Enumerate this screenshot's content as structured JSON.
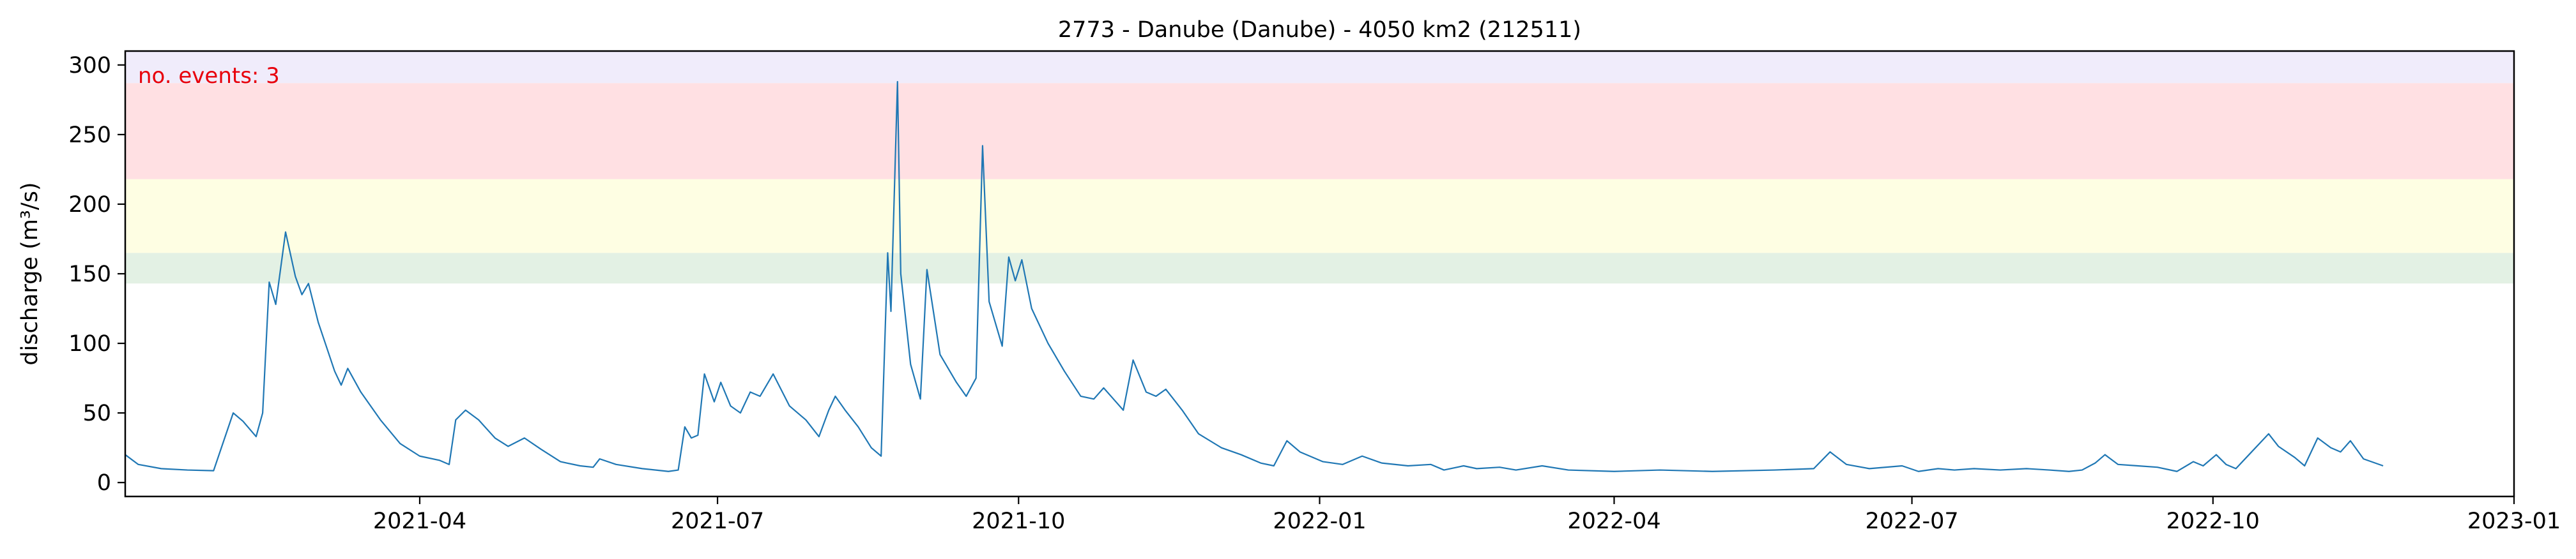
{
  "chart_data": {
    "type": "line",
    "title": "2773 - Danube (Danube) - 4050 km2 (212511)",
    "xlabel": "",
    "ylabel": "discharge (m³/s)",
    "annotation": "no. events: 3",
    "x_range": [
      "2021-01-01",
      "2023-01-01"
    ],
    "ylim": [
      -10,
      310
    ],
    "y_ticks": [
      0,
      50,
      100,
      150,
      200,
      250,
      300
    ],
    "x_ticks": [
      "2021-04",
      "2021-07",
      "2021-10",
      "2022-01",
      "2022-04",
      "2022-07",
      "2022-10",
      "2023-01"
    ],
    "grid": false,
    "threshold_bands": [
      {
        "from": 143,
        "to": 165,
        "color": "#e3f1e4"
      },
      {
        "from": 165,
        "to": 218,
        "color": "#fefee3"
      },
      {
        "from": 218,
        "to": 287,
        "color": "#ffe0e3"
      },
      {
        "from": 287,
        "to": 310,
        "color": "#f0ecfb"
      }
    ],
    "series": [
      {
        "color": "#1f77b4",
        "points": [
          [
            "2021-01-01",
            20
          ],
          [
            "2021-01-05",
            13
          ],
          [
            "2021-01-12",
            10
          ],
          [
            "2021-01-20",
            9
          ],
          [
            "2021-01-28",
            8.5
          ],
          [
            "2021-02-03",
            50
          ],
          [
            "2021-02-06",
            44
          ],
          [
            "2021-02-10",
            33
          ],
          [
            "2021-02-12",
            50
          ],
          [
            "2021-02-14",
            144
          ],
          [
            "2021-02-16",
            128
          ],
          [
            "2021-02-19",
            180
          ],
          [
            "2021-02-22",
            148
          ],
          [
            "2021-02-24",
            135
          ],
          [
            "2021-02-26",
            143
          ],
          [
            "2021-03-01",
            115
          ],
          [
            "2021-03-06",
            80
          ],
          [
            "2021-03-08",
            70
          ],
          [
            "2021-03-10",
            82
          ],
          [
            "2021-03-14",
            65
          ],
          [
            "2021-03-20",
            45
          ],
          [
            "2021-03-26",
            28
          ],
          [
            "2021-04-01",
            19
          ],
          [
            "2021-04-07",
            16
          ],
          [
            "2021-04-10",
            13
          ],
          [
            "2021-04-12",
            45
          ],
          [
            "2021-04-15",
            52
          ],
          [
            "2021-04-19",
            45
          ],
          [
            "2021-04-24",
            32
          ],
          [
            "2021-04-28",
            26
          ],
          [
            "2021-05-03",
            32
          ],
          [
            "2021-05-08",
            24
          ],
          [
            "2021-05-14",
            15
          ],
          [
            "2021-05-20",
            12
          ],
          [
            "2021-05-24",
            11
          ],
          [
            "2021-05-26",
            17
          ],
          [
            "2021-05-31",
            13
          ],
          [
            "2021-06-08",
            10
          ],
          [
            "2021-06-16",
            8
          ],
          [
            "2021-06-19",
            9
          ],
          [
            "2021-06-21",
            40
          ],
          [
            "2021-06-23",
            32
          ],
          [
            "2021-06-25",
            34
          ],
          [
            "2021-06-27",
            78
          ],
          [
            "2021-06-30",
            58
          ],
          [
            "2021-07-02",
            72
          ],
          [
            "2021-07-05",
            55
          ],
          [
            "2021-07-08",
            50
          ],
          [
            "2021-07-11",
            65
          ],
          [
            "2021-07-14",
            62
          ],
          [
            "2021-07-18",
            78
          ],
          [
            "2021-07-23",
            55
          ],
          [
            "2021-07-28",
            45
          ],
          [
            "2021-08-01",
            33
          ],
          [
            "2021-08-04",
            52
          ],
          [
            "2021-08-06",
            62
          ],
          [
            "2021-08-09",
            52
          ],
          [
            "2021-08-13",
            40
          ],
          [
            "2021-08-17",
            25
          ],
          [
            "2021-08-20",
            19
          ],
          [
            "2021-08-22",
            165
          ],
          [
            "2021-08-23",
            123
          ],
          [
            "2021-08-25",
            288
          ],
          [
            "2021-08-26",
            150
          ],
          [
            "2021-08-29",
            85
          ],
          [
            "2021-09-01",
            60
          ],
          [
            "2021-09-03",
            153
          ],
          [
            "2021-09-07",
            92
          ],
          [
            "2021-09-12",
            72
          ],
          [
            "2021-09-15",
            62
          ],
          [
            "2021-09-18",
            75
          ],
          [
            "2021-09-20",
            242
          ],
          [
            "2021-09-22",
            130
          ],
          [
            "2021-09-26",
            98
          ],
          [
            "2021-09-28",
            162
          ],
          [
            "2021-09-30",
            145
          ],
          [
            "2021-10-02",
            160
          ],
          [
            "2021-10-05",
            125
          ],
          [
            "2021-10-10",
            100
          ],
          [
            "2021-10-15",
            80
          ],
          [
            "2021-10-20",
            62
          ],
          [
            "2021-10-24",
            60
          ],
          [
            "2021-10-27",
            68
          ],
          [
            "2021-10-30",
            60
          ],
          [
            "2021-11-02",
            52
          ],
          [
            "2021-11-05",
            88
          ],
          [
            "2021-11-09",
            65
          ],
          [
            "2021-11-12",
            62
          ],
          [
            "2021-11-15",
            67
          ],
          [
            "2021-11-20",
            52
          ],
          [
            "2021-11-25",
            35
          ],
          [
            "2021-12-02",
            25
          ],
          [
            "2021-12-08",
            20
          ],
          [
            "2021-12-14",
            14
          ],
          [
            "2021-12-18",
            12
          ],
          [
            "2021-12-22",
            30
          ],
          [
            "2021-12-26",
            22
          ],
          [
            "2022-01-02",
            15
          ],
          [
            "2022-01-08",
            13
          ],
          [
            "2022-01-14",
            19
          ],
          [
            "2022-01-20",
            14
          ],
          [
            "2022-01-28",
            12
          ],
          [
            "2022-02-04",
            13
          ],
          [
            "2022-02-08",
            9
          ],
          [
            "2022-02-14",
            12
          ],
          [
            "2022-02-18",
            10
          ],
          [
            "2022-02-25",
            11
          ],
          [
            "2022-03-02",
            9
          ],
          [
            "2022-03-10",
            12
          ],
          [
            "2022-03-18",
            9
          ],
          [
            "2022-04-01",
            8
          ],
          [
            "2022-04-15",
            9
          ],
          [
            "2022-05-01",
            8
          ],
          [
            "2022-05-20",
            9
          ],
          [
            "2022-06-01",
            10
          ],
          [
            "2022-06-06",
            22
          ],
          [
            "2022-06-11",
            13
          ],
          [
            "2022-06-18",
            10
          ],
          [
            "2022-06-28",
            12
          ],
          [
            "2022-07-03",
            8
          ],
          [
            "2022-07-09",
            10
          ],
          [
            "2022-07-14",
            9
          ],
          [
            "2022-07-20",
            10
          ],
          [
            "2022-07-28",
            9
          ],
          [
            "2022-08-05",
            10
          ],
          [
            "2022-08-12",
            9
          ],
          [
            "2022-08-18",
            8
          ],
          [
            "2022-08-22",
            9
          ],
          [
            "2022-08-26",
            14
          ],
          [
            "2022-08-29",
            20
          ],
          [
            "2022-09-02",
            13
          ],
          [
            "2022-09-08",
            12
          ],
          [
            "2022-09-14",
            11
          ],
          [
            "2022-09-20",
            8
          ],
          [
            "2022-09-25",
            15
          ],
          [
            "2022-09-28",
            12
          ],
          [
            "2022-10-02",
            20
          ],
          [
            "2022-10-05",
            13
          ],
          [
            "2022-10-08",
            10
          ],
          [
            "2022-10-12",
            20
          ],
          [
            "2022-10-18",
            35
          ],
          [
            "2022-10-21",
            26
          ],
          [
            "2022-10-26",
            18
          ],
          [
            "2022-10-29",
            12
          ],
          [
            "2022-11-02",
            32
          ],
          [
            "2022-11-06",
            25
          ],
          [
            "2022-11-09",
            22
          ],
          [
            "2022-11-12",
            30
          ],
          [
            "2022-11-16",
            17
          ],
          [
            "2022-11-22",
            12
          ]
        ]
      }
    ],
    "events": []
  }
}
